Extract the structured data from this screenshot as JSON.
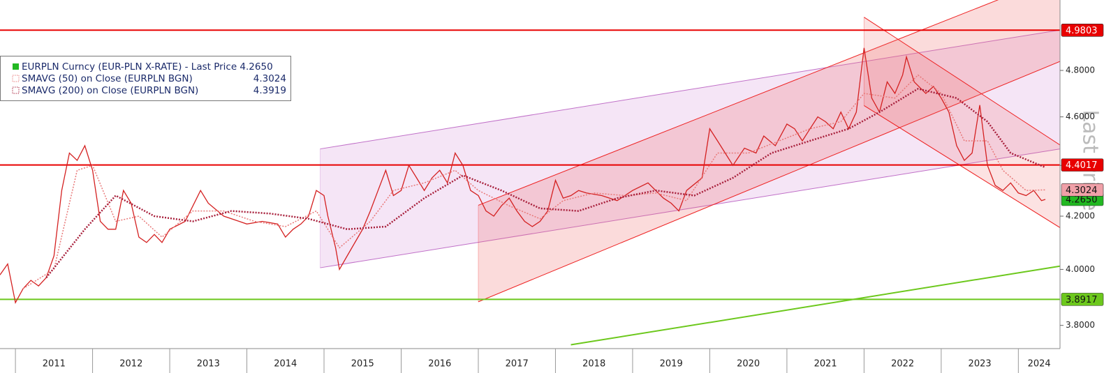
{
  "chart_data": {
    "type": "line",
    "y_label": "Last Price",
    "log_scale": true,
    "xlim": [
      2010.8,
      2024.54
    ],
    "ylim": [
      3.72,
      5.12
    ],
    "xticks": [
      2011,
      2012,
      2013,
      2014,
      2015,
      2016,
      2017,
      2018,
      2019,
      2020,
      2021,
      2022,
      2023,
      2024
    ],
    "yticks": [
      {
        "value": 3.8,
        "label": "3.8000"
      },
      {
        "value": 4.0,
        "label": "4.0000"
      },
      {
        "value": 4.2,
        "label": "4.2000"
      },
      {
        "value": 4.4,
        "label": "4.4000"
      },
      {
        "value": 4.6,
        "label": "4.6000"
      },
      {
        "value": 4.8,
        "label": "4.8000"
      }
    ],
    "legend": "upper left",
    "series": [
      {
        "name": "EURPLN Curncy (EUR-PLN X-RATE) - Last Price 4.2650",
        "color": "#d42020",
        "marker_color": "#22b822",
        "last": 4.265,
        "last_label": "4.2650",
        "tag_color": "#22b822",
        "x": [
          2010.8,
          2010.9,
          2011.0,
          2011.1,
          2011.2,
          2011.3,
          2011.4,
          2011.5,
          2011.6,
          2011.7,
          2011.8,
          2011.9,
          2012.0,
          2012.1,
          2012.2,
          2012.3,
          2012.4,
          2012.5,
          2012.6,
          2012.7,
          2012.8,
          2012.9,
          2013.0,
          2013.2,
          2013.4,
          2013.5,
          2013.7,
          2013.9,
          2014.0,
          2014.2,
          2014.4,
          2014.5,
          2014.6,
          2014.7,
          2014.8,
          2014.9,
          2015.0,
          2015.05,
          2015.15,
          2015.2,
          2015.3,
          2015.5,
          2015.6,
          2015.7,
          2015.8,
          2015.9,
          2016.0,
          2016.1,
          2016.2,
          2016.3,
          2016.4,
          2016.5,
          2016.6,
          2016.7,
          2016.8,
          2016.9,
          2017.0,
          2017.1,
          2017.2,
          2017.3,
          2017.4,
          2017.5,
          2017.6,
          2017.7,
          2017.8,
          2017.9,
          2018.0,
          2018.1,
          2018.2,
          2018.3,
          2018.4,
          2018.6,
          2018.8,
          2019.0,
          2019.2,
          2019.4,
          2019.5,
          2019.6,
          2019.7,
          2019.9,
          2020.0,
          2020.1,
          2020.2,
          2020.3,
          2020.45,
          2020.6,
          2020.7,
          2020.85,
          2021.0,
          2021.1,
          2021.2,
          2021.3,
          2021.4,
          2021.5,
          2021.6,
          2021.7,
          2021.8,
          2021.9,
          2022.0,
          2022.1,
          2022.2,
          2022.3,
          2022.4,
          2022.5,
          2022.55,
          2022.65,
          2022.8,
          2022.9,
          2023.0,
          2023.1,
          2023.2,
          2023.3,
          2023.4,
          2023.5,
          2023.6,
          2023.7,
          2023.8,
          2023.9,
          2024.0,
          2024.1,
          2024.2,
          2024.3,
          2024.35
        ],
        "values": [
          3.98,
          4.02,
          3.88,
          3.93,
          3.96,
          3.94,
          3.97,
          4.05,
          4.3,
          4.45,
          4.42,
          4.48,
          4.38,
          4.18,
          4.15,
          4.15,
          4.3,
          4.25,
          4.12,
          4.1,
          4.13,
          4.1,
          4.15,
          4.18,
          4.3,
          4.25,
          4.2,
          4.18,
          4.17,
          4.18,
          4.17,
          4.12,
          4.15,
          4.17,
          4.2,
          4.3,
          4.28,
          4.2,
          4.08,
          4.0,
          4.05,
          4.15,
          4.22,
          4.3,
          4.38,
          4.28,
          4.3,
          4.4,
          4.35,
          4.3,
          4.35,
          4.38,
          4.33,
          4.45,
          4.4,
          4.3,
          4.28,
          4.22,
          4.2,
          4.24,
          4.27,
          4.22,
          4.18,
          4.16,
          4.18,
          4.22,
          4.34,
          4.27,
          4.28,
          4.3,
          4.29,
          4.28,
          4.26,
          4.3,
          4.33,
          4.27,
          4.25,
          4.22,
          4.3,
          4.35,
          4.55,
          4.5,
          4.45,
          4.4,
          4.47,
          4.45,
          4.52,
          4.48,
          4.57,
          4.55,
          4.5,
          4.55,
          4.6,
          4.58,
          4.55,
          4.62,
          4.55,
          4.62,
          4.9,
          4.68,
          4.62,
          4.75,
          4.7,
          4.78,
          4.86,
          4.75,
          4.7,
          4.73,
          4.68,
          4.62,
          4.48,
          4.42,
          4.45,
          4.65,
          4.4,
          4.32,
          4.3,
          4.33,
          4.29,
          4.28,
          4.3,
          4.26,
          4.265
        ]
      },
      {
        "name": "SMAVG (50)  on Close (EURPLN BGN)",
        "color": "#e87878",
        "dash": "2,2",
        "width": 1.5,
        "last": 4.3024,
        "tag_color": "#f0a0a8",
        "x": [
          2011.1,
          2011.5,
          2011.8,
          2012.0,
          2012.3,
          2012.6,
          2012.9,
          2013.3,
          2013.7,
          2014.1,
          2014.5,
          2014.9,
          2015.2,
          2015.6,
          2015.9,
          2016.3,
          2016.7,
          2017.0,
          2017.4,
          2017.8,
          2018.1,
          2018.5,
          2018.9,
          2019.3,
          2019.7,
          2020.1,
          2020.5,
          2020.9,
          2021.3,
          2021.7,
          2022.0,
          2022.4,
          2022.7,
          2023.0,
          2023.3,
          2023.6,
          2023.8,
          2024.1,
          2024.35
        ],
        "values": [
          3.93,
          4.0,
          4.38,
          4.4,
          4.18,
          4.2,
          4.12,
          4.22,
          4.22,
          4.18,
          4.16,
          4.22,
          4.08,
          4.18,
          4.3,
          4.33,
          4.38,
          4.3,
          4.24,
          4.19,
          4.26,
          4.29,
          4.28,
          4.29,
          4.26,
          4.45,
          4.45,
          4.5,
          4.55,
          4.58,
          4.7,
          4.68,
          4.78,
          4.7,
          4.5,
          4.5,
          4.38,
          4.3,
          4.3024
        ]
      },
      {
        "name": "SMAVG (200)  on Close (EURPLN BGN)",
        "color": "#a8203c",
        "dash": "2,2",
        "width": 2.5,
        "last": 4.3919,
        "x": [
          2011.4,
          2011.9,
          2012.3,
          2012.8,
          2013.3,
          2013.8,
          2014.3,
          2014.8,
          2015.3,
          2015.8,
          2016.3,
          2016.8,
          2017.3,
          2017.8,
          2018.3,
          2018.8,
          2019.3,
          2019.8,
          2020.3,
          2020.8,
          2021.3,
          2021.8,
          2022.2,
          2022.7,
          2023.2,
          2023.6,
          2023.9,
          2024.35
        ],
        "values": [
          3.97,
          4.15,
          4.28,
          4.2,
          4.18,
          4.22,
          4.21,
          4.19,
          4.15,
          4.16,
          4.27,
          4.36,
          4.3,
          4.23,
          4.22,
          4.27,
          4.3,
          4.28,
          4.35,
          4.45,
          4.5,
          4.55,
          4.62,
          4.72,
          4.68,
          4.58,
          4.45,
          4.3919
        ]
      }
    ],
    "channels": [
      {
        "x": [
          2014.95,
          2024.54
        ],
        "upper": [
          4.467,
          4.981
        ],
        "lower": [
          4.006,
          4.467
        ],
        "color": "#c070c8",
        "fill": "rgba(225,180,230,0.35)"
      },
      {
        "x": [
          2017.0,
          2024.54
        ],
        "upper": [
          4.242,
          5.237
        ],
        "lower": [
          3.883,
          4.84
        ],
        "color": "#ee2020",
        "fill": "rgba(240,110,110,0.25)"
      },
      {
        "x": [
          2022.0,
          2024.54
        ],
        "upper": [
          5.04,
          4.483
        ],
        "lower": [
          4.648,
          4.156
        ],
        "color": "#ee2020",
        "fill": "rgba(240,110,110,0.2)"
      }
    ],
    "levels": [
      {
        "value": 4.9803,
        "color": "#e80000"
      },
      {
        "value": 4.4017,
        "color": "#e80000"
      },
      {
        "value": 3.8917,
        "color": "#6cc81c"
      }
    ],
    "trendlines": [
      {
        "x": [
          2018.2,
          2024.54
        ],
        "y": [
          3.733,
          4.012
        ],
        "color": "#6cc81c"
      }
    ]
  }
}
